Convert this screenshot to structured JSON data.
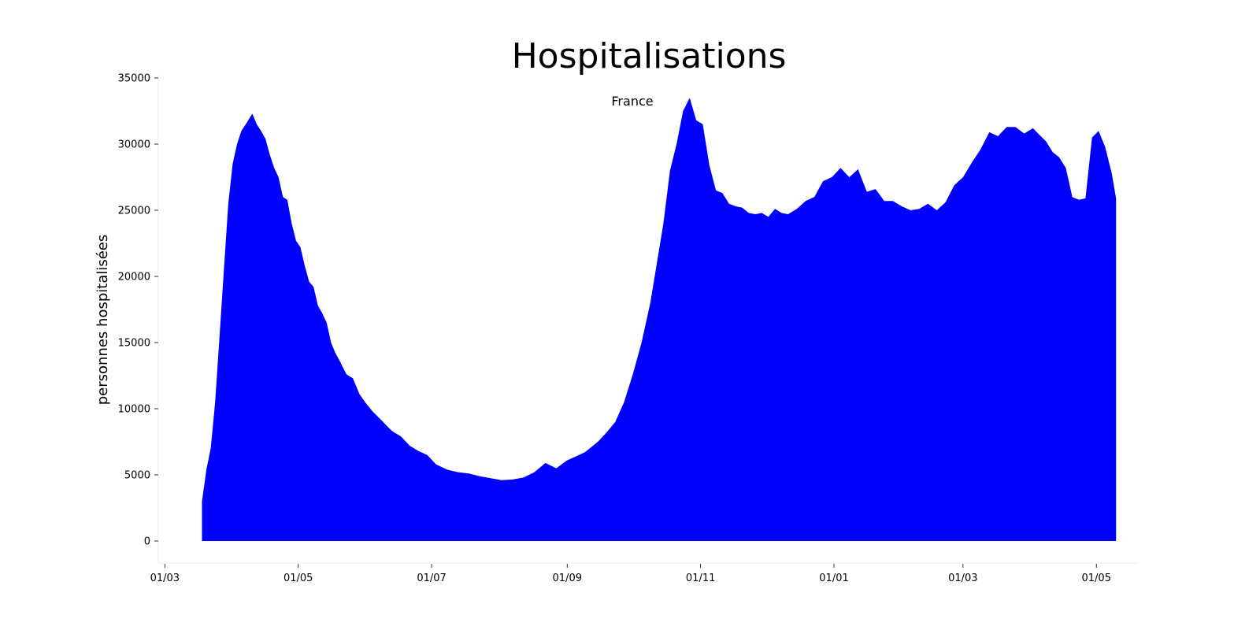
{
  "chart_data": {
    "type": "area",
    "title": "Hospitalisations",
    "subtitle": "France",
    "xlabel": "",
    "ylabel": "personnes hospitalisées",
    "ylim": [
      0,
      35000
    ],
    "xlim": [
      "2020-02-27",
      "2021-05-20"
    ],
    "yticks": [
      0,
      5000,
      10000,
      15000,
      20000,
      25000,
      30000,
      35000
    ],
    "xticks": [
      {
        "date": "2020-03-01",
        "label": "01/03"
      },
      {
        "date": "2020-05-01",
        "label": "01/05"
      },
      {
        "date": "2020-07-01",
        "label": "01/07"
      },
      {
        "date": "2020-09-01",
        "label": "01/09"
      },
      {
        "date": "2020-11-01",
        "label": "01/11"
      },
      {
        "date": "2021-01-01",
        "label": "01/01"
      },
      {
        "date": "2021-03-01",
        "label": "01/03"
      },
      {
        "date": "2021-05-01",
        "label": "01/05"
      }
    ],
    "grid": false,
    "color": "#0000ff",
    "series": [
      {
        "x": [
          "2020-03-18",
          "2020-03-20",
          "2020-03-22",
          "2020-03-24",
          "2020-03-26",
          "2020-03-28",
          "2020-03-30",
          "2020-04-01",
          "2020-04-03",
          "2020-04-05",
          "2020-04-07",
          "2020-04-10",
          "2020-04-12",
          "2020-04-14",
          "2020-04-16",
          "2020-04-18",
          "2020-04-20",
          "2020-04-22",
          "2020-04-24",
          "2020-04-26",
          "2020-04-28",
          "2020-04-30",
          "2020-05-02",
          "2020-05-04",
          "2020-05-06",
          "2020-05-08",
          "2020-05-10",
          "2020-05-12",
          "2020-05-14",
          "2020-05-16",
          "2020-05-18",
          "2020-05-20",
          "2020-05-23",
          "2020-05-26",
          "2020-05-29",
          "2020-06-01",
          "2020-06-04",
          "2020-06-07",
          "2020-06-10",
          "2020-06-13",
          "2020-06-17",
          "2020-06-21",
          "2020-06-25",
          "2020-06-29",
          "2020-07-03",
          "2020-07-08",
          "2020-07-13",
          "2020-07-18",
          "2020-07-23",
          "2020-07-28",
          "2020-08-02",
          "2020-08-07",
          "2020-08-12",
          "2020-08-17",
          "2020-08-22",
          "2020-08-27",
          "2020-09-01",
          "2020-09-05",
          "2020-09-09",
          "2020-09-12",
          "2020-09-15",
          "2020-09-19",
          "2020-09-23",
          "2020-09-27",
          "2020-10-01",
          "2020-10-05",
          "2020-10-09",
          "2020-10-12",
          "2020-10-15",
          "2020-10-18",
          "2020-10-21",
          "2020-10-24",
          "2020-10-27",
          "2020-10-30",
          "2020-11-02",
          "2020-11-05",
          "2020-11-08",
          "2020-11-11",
          "2020-11-14",
          "2020-11-17",
          "2020-11-20",
          "2020-11-23",
          "2020-11-26",
          "2020-11-29",
          "2020-12-02",
          "2020-12-05",
          "2020-12-08",
          "2020-12-11",
          "2020-12-15",
          "2020-12-19",
          "2020-12-23",
          "2020-12-27",
          "2020-12-31",
          "2021-01-04",
          "2021-01-08",
          "2021-01-12",
          "2021-01-16",
          "2021-01-20",
          "2021-01-24",
          "2021-01-28",
          "2021-02-01",
          "2021-02-05",
          "2021-02-09",
          "2021-02-13",
          "2021-02-17",
          "2021-02-21",
          "2021-02-25",
          "2021-03-01",
          "2021-03-05",
          "2021-03-09",
          "2021-03-13",
          "2021-03-17",
          "2021-03-21",
          "2021-03-25",
          "2021-03-29",
          "2021-04-02",
          "2021-04-05",
          "2021-04-08",
          "2021-04-11",
          "2021-04-14",
          "2021-04-17",
          "2021-04-20",
          "2021-04-23",
          "2021-04-26",
          "2021-04-29",
          "2021-05-02",
          "2021-05-05",
          "2021-05-08",
          "2021-05-10"
        ],
        "y": [
          3000,
          5400,
          7000,
          10500,
          15500,
          20500,
          25500,
          28500,
          30000,
          31000,
          31500,
          32300,
          31500,
          31000,
          30400,
          29200,
          28200,
          27500,
          26000,
          25800,
          24000,
          22700,
          22200,
          20800,
          19600,
          19200,
          17800,
          17200,
          16500,
          15000,
          14200,
          13600,
          12600,
          12300,
          11100,
          10400,
          9800,
          9300,
          8800,
          8300,
          7900,
          7200,
          6800,
          6500,
          5800,
          5400,
          5200,
          5100,
          4900,
          4750,
          4600,
          4650,
          4800,
          5200,
          5900,
          5500,
          6100,
          6400,
          6700,
          7100,
          7500,
          8200,
          9000,
          10500,
          12600,
          15000,
          18000,
          21000,
          24000,
          28000,
          30000,
          32500,
          33500,
          31800,
          31500,
          28400,
          26500,
          26300,
          25500,
          25300,
          25200,
          24800,
          24700,
          24800,
          24500,
          25100,
          24800,
          24700,
          25100,
          25700,
          26000,
          27200,
          27500,
          28200,
          27500,
          28100,
          26400,
          26600,
          25700,
          25700,
          25300,
          25000,
          25100,
          25500,
          25000,
          25600,
          26900,
          27500,
          28600,
          29600,
          30900,
          30600,
          31300,
          31300,
          30800,
          31200,
          30700,
          30200,
          29400,
          29000,
          28200,
          26000,
          25800,
          25900,
          30500,
          31000,
          29800,
          27800,
          25900
        ]
      }
    ]
  }
}
